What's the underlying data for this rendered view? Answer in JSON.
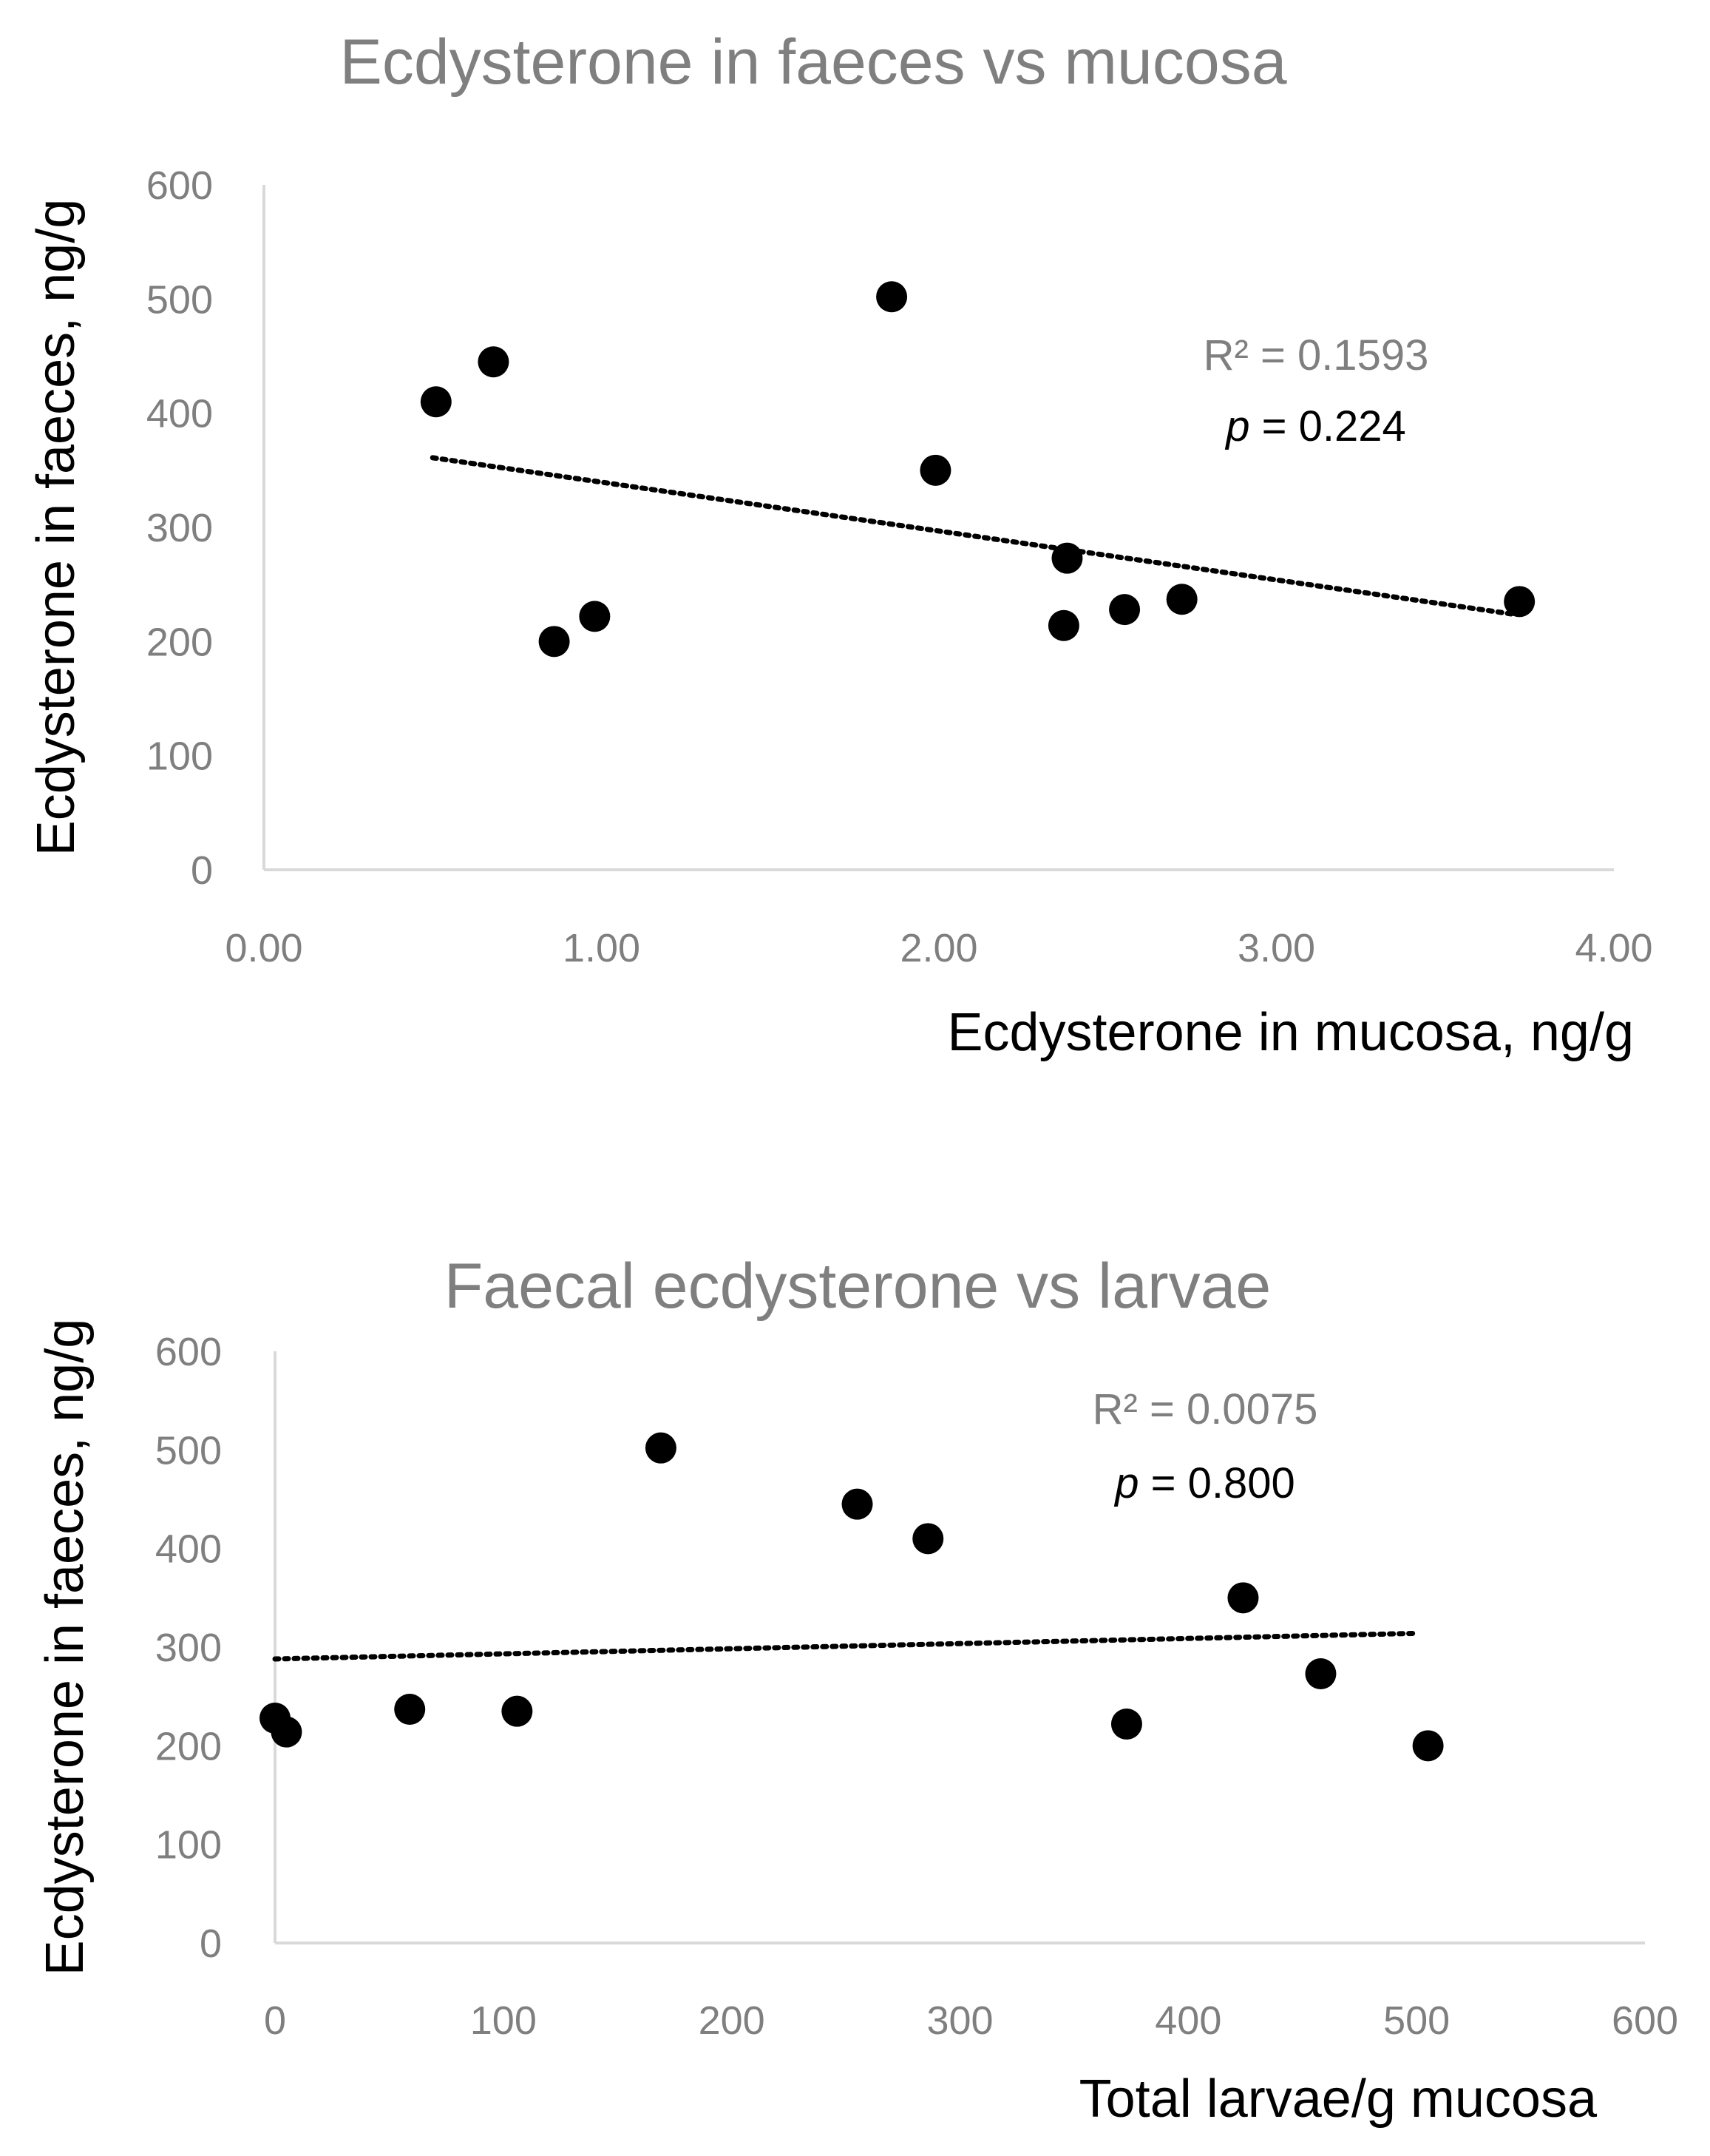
{
  "chart_data": [
    {
      "type": "scatter",
      "title": "Ecdysterone in faeces vs mucosa",
      "xlabel": "Ecdysterone in mucosa, ng/g",
      "ylabel": "Ecdysterone in faeces, ng/g",
      "xlim": [
        0,
        4
      ],
      "ylim": [
        0,
        600
      ],
      "x_ticks": [
        "0.00",
        "1.00",
        "2.00",
        "3.00",
        "4.00"
      ],
      "y_ticks": [
        "0",
        "100",
        "200",
        "300",
        "400",
        "500",
        "600"
      ],
      "series": [
        {
          "name": "samples",
          "x": [
            0.51,
            0.68,
            0.86,
            0.98,
            1.86,
            1.99,
            2.37,
            2.38,
            2.55,
            2.72,
            3.72
          ],
          "y": [
            410,
            445,
            200,
            222,
            502,
            350,
            214,
            273,
            228,
            237,
            235
          ]
        }
      ],
      "trendline": {
        "style": "dotted",
        "x": [
          0.5,
          3.7
        ],
        "y": [
          361,
          224
        ]
      },
      "annotations": {
        "r2": "R² = 0.1593",
        "p_symbol": "p",
        "p_rest": " = 0.224"
      }
    },
    {
      "type": "scatter",
      "title": "Faecal ecdysterone vs larvae",
      "xlabel": "Total larvae/g mucosa",
      "ylabel": "Ecdysterone in faeces, ng/g",
      "xlim": [
        0,
        600
      ],
      "ylim": [
        0,
        600
      ],
      "x_ticks": [
        "0",
        "100",
        "200",
        "300",
        "400",
        "500",
        "600"
      ],
      "y_ticks": [
        "0",
        "100",
        "200",
        "300",
        "400",
        "500",
        "600"
      ],
      "series": [
        {
          "name": "samples",
          "x": [
            0,
            5,
            59,
            106,
            169,
            255,
            286,
            373,
            424,
            458,
            505
          ],
          "y": [
            228,
            214,
            237,
            235,
            502,
            445,
            410,
            222,
            350,
            273,
            200
          ]
        }
      ],
      "trendline": {
        "style": "dotted",
        "x": [
          0,
          500
        ],
        "y": [
          288,
          314
        ]
      },
      "annotations": {
        "r2": "R² = 0.0075",
        "p_symbol": "p",
        "p_rest": " = 0.800"
      }
    }
  ]
}
